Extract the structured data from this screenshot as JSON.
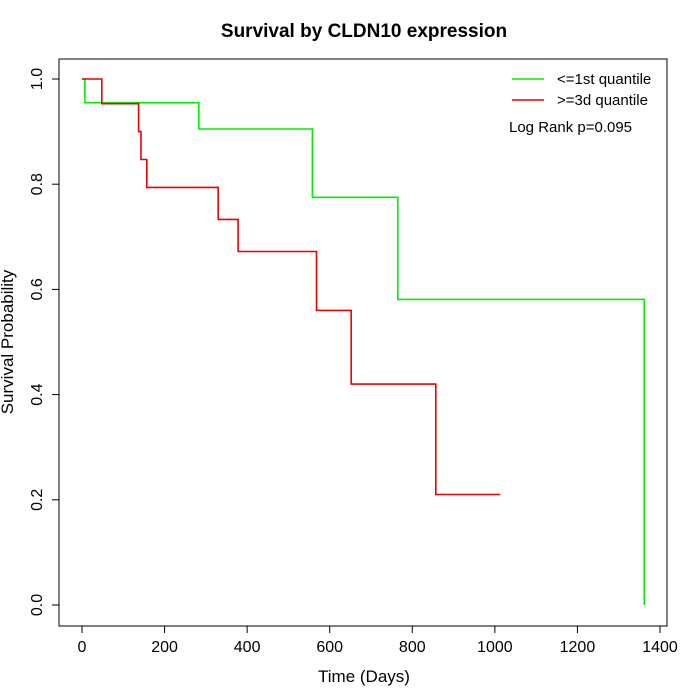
{
  "chart_data": {
    "type": "line",
    "title": "Survival by CLDN10 expression",
    "xlabel": "Time (Days)",
    "ylabel": "Survival Probability",
    "xlim": [
      0,
      1400
    ],
    "ylim": [
      0,
      1.0
    ],
    "x_ticks": [
      "0",
      "200",
      "400",
      "600",
      "800",
      "1000",
      "1200",
      "1400"
    ],
    "y_ticks": [
      "0.0",
      "0.2",
      "0.4",
      "0.6",
      "0.8",
      "1.0"
    ],
    "legend_position": "top-right",
    "annotation": "Log Rank p=0.095",
    "series": [
      {
        "name": "<=1st quantile",
        "color": "#00ee00",
        "step": true,
        "x": [
          0,
          7,
          7,
          283,
          283,
          558,
          558,
          765,
          765,
          1362,
          1362
        ],
        "y": [
          1.0,
          1.0,
          0.955,
          0.955,
          0.905,
          0.905,
          0.775,
          0.775,
          0.581,
          0.581,
          0.0
        ]
      },
      {
        "name": ">=3d quantile",
        "color": "#ee0000",
        "step": true,
        "x": [
          0,
          48,
          48,
          137,
          137,
          143,
          143,
          157,
          157,
          330,
          330,
          378,
          378,
          568,
          568,
          652,
          652,
          857,
          857,
          1013
        ],
        "y": [
          1.0,
          1.0,
          0.953,
          0.953,
          0.9,
          0.9,
          0.847,
          0.847,
          0.794,
          0.794,
          0.733,
          0.733,
          0.672,
          0.672,
          0.56,
          0.56,
          0.42,
          0.42,
          0.21,
          0.21
        ]
      }
    ]
  }
}
